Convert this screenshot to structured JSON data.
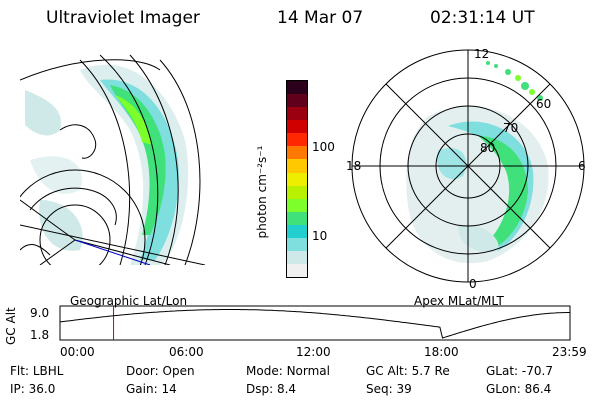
{
  "header": {
    "title": "Ultraviolet Imager",
    "date": "14 Mar 07",
    "time": "02:31:14 UT"
  },
  "colorbar": {
    "unit_label": "photon cm⁻²s⁻¹",
    "ticks": [
      "100",
      "10"
    ],
    "colors": [
      "#f0f0f0",
      "#cfe9e9",
      "#7fdede",
      "#22cfcf",
      "#40e07a",
      "#7cff2a",
      "#b8f000",
      "#eeee00",
      "#ffc800",
      "#ff7800",
      "#ff2800",
      "#d00000",
      "#9a0010",
      "#60001a",
      "#2a001a"
    ]
  },
  "geo_map": {
    "label": "Geographic Lat/Lon"
  },
  "polar_map": {
    "label": "Apex  MLat/MLT",
    "mlt_labels": {
      "top": "12",
      "left": "18",
      "right": "6",
      "bottom": "0"
    },
    "lat_labels": [
      "80",
      "70",
      "60"
    ]
  },
  "altitude_plot": {
    "y_label": "GC Alt",
    "y_max": "9.0",
    "y_min": "1.8",
    "x_ticks": [
      "00:00",
      "06:00",
      "12:00",
      "18:00",
      "23:59"
    ],
    "marker_hour": 2.52,
    "line_color": "#000000",
    "marker_color": "#cc0000"
  },
  "footer": {
    "row1": [
      {
        "key": "Flt:",
        "value": "LBHL"
      },
      {
        "key": "Door:",
        "value": "Open"
      },
      {
        "key": "Mode:",
        "value": "Normal"
      },
      {
        "key": "GC Alt:",
        "value": "5.7 Re"
      },
      {
        "key": "GLat:",
        "value": "-70.7"
      }
    ],
    "row2": [
      {
        "key": "IP:",
        "value": "36.0"
      },
      {
        "key": "Gain:",
        "value": "14"
      },
      {
        "key": "Dsp:",
        "value": "8.4"
      },
      {
        "key": "Seq:",
        "value": "39"
      },
      {
        "key": "GLon:",
        "value": "86.4"
      }
    ]
  }
}
